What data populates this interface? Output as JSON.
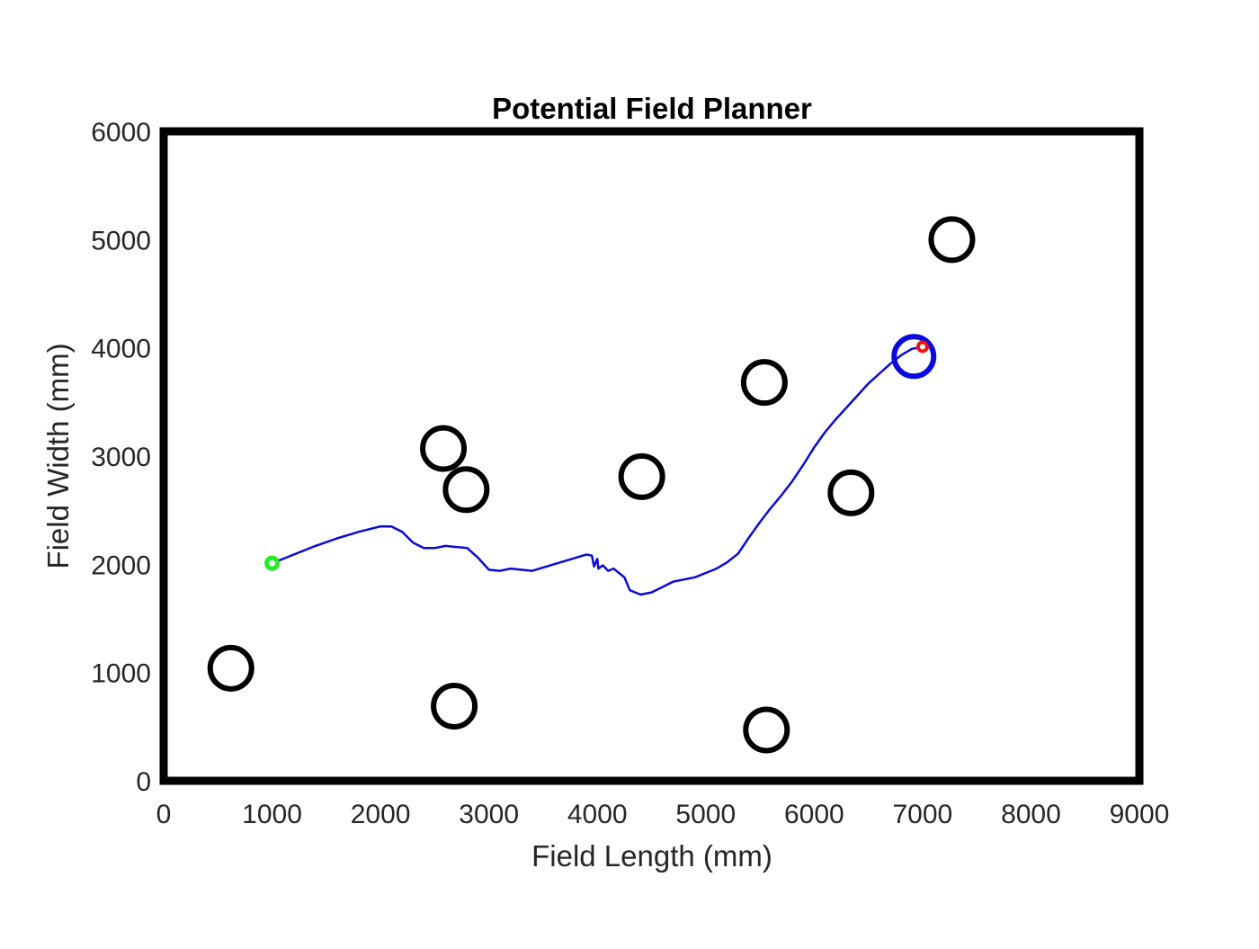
{
  "chart_data": {
    "type": "scatter",
    "title": "Potential Field Planner",
    "xlabel": "Field Length (mm)",
    "ylabel": "Field Width (mm)",
    "xlim": [
      0,
      9000
    ],
    "ylim": [
      0,
      6000
    ],
    "xticks": [
      "0",
      "1000",
      "2000",
      "3000",
      "4000",
      "5000",
      "6000",
      "7000",
      "8000",
      "9000"
    ],
    "yticks": [
      "0",
      "1000",
      "2000",
      "3000",
      "4000",
      "5000",
      "6000"
    ],
    "grid": false,
    "colors": {
      "border": "#000000",
      "obstacle": "#000000",
      "path": "#0a0ad6",
      "start": "#22ee22",
      "goal": "#ee1111",
      "robot": "#0a0ade"
    },
    "obstacles": [
      {
        "x": 620,
        "y": 1040
      },
      {
        "x": 2580,
        "y": 3070
      },
      {
        "x": 2790,
        "y": 2690
      },
      {
        "x": 2680,
        "y": 690
      },
      {
        "x": 4410,
        "y": 2810
      },
      {
        "x": 5540,
        "y": 3680
      },
      {
        "x": 5560,
        "y": 470
      },
      {
        "x": 6340,
        "y": 2660
      },
      {
        "x": 7270,
        "y": 5000
      }
    ],
    "start": {
      "x": 1000,
      "y": 2010
    },
    "goal": {
      "x": 7000,
      "y": 4010
    },
    "robot": {
      "x": 6920,
      "y": 3920
    },
    "path": [
      [
        1000,
        2010
      ],
      [
        1200,
        2090
      ],
      [
        1400,
        2170
      ],
      [
        1600,
        2240
      ],
      [
        1800,
        2300
      ],
      [
        2000,
        2350
      ],
      [
        2100,
        2350
      ],
      [
        2200,
        2300
      ],
      [
        2300,
        2200
      ],
      [
        2400,
        2150
      ],
      [
        2500,
        2150
      ],
      [
        2600,
        2170
      ],
      [
        2700,
        2160
      ],
      [
        2800,
        2150
      ],
      [
        2900,
        2060
      ],
      [
        3000,
        1950
      ],
      [
        3100,
        1940
      ],
      [
        3200,
        1960
      ],
      [
        3300,
        1950
      ],
      [
        3400,
        1940
      ],
      [
        3500,
        1970
      ],
      [
        3600,
        2000
      ],
      [
        3700,
        2030
      ],
      [
        3800,
        2060
      ],
      [
        3900,
        2090
      ],
      [
        3950,
        2080
      ],
      [
        3970,
        1980
      ],
      [
        4000,
        2050
      ],
      [
        4010,
        1960
      ],
      [
        4050,
        1990
      ],
      [
        4100,
        1940
      ],
      [
        4150,
        1960
      ],
      [
        4200,
        1920
      ],
      [
        4250,
        1880
      ],
      [
        4300,
        1760
      ],
      [
        4350,
        1740
      ],
      [
        4400,
        1720
      ],
      [
        4500,
        1740
      ],
      [
        4600,
        1790
      ],
      [
        4700,
        1840
      ],
      [
        4800,
        1860
      ],
      [
        4900,
        1880
      ],
      [
        5000,
        1920
      ],
      [
        5100,
        1960
      ],
      [
        5200,
        2020
      ],
      [
        5300,
        2100
      ],
      [
        5400,
        2250
      ],
      [
        5500,
        2390
      ],
      [
        5600,
        2520
      ],
      [
        5700,
        2640
      ],
      [
        5800,
        2770
      ],
      [
        5900,
        2920
      ],
      [
        6000,
        3080
      ],
      [
        6100,
        3220
      ],
      [
        6200,
        3340
      ],
      [
        6300,
        3450
      ],
      [
        6400,
        3560
      ],
      [
        6500,
        3670
      ],
      [
        6600,
        3760
      ],
      [
        6700,
        3850
      ],
      [
        6800,
        3930
      ],
      [
        6900,
        3990
      ],
      [
        7000,
        4010
      ]
    ]
  }
}
